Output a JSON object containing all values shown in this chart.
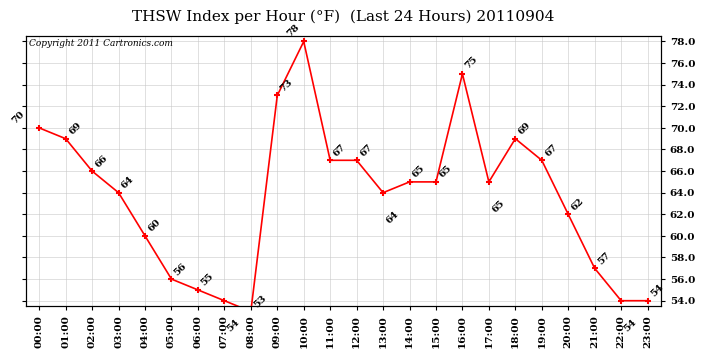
{
  "title": "THSW Index per Hour (°F)  (Last 24 Hours) 20110904",
  "copyright": "Copyright 2011 Cartronics.com",
  "hours": [
    "00:00",
    "01:00",
    "02:00",
    "03:00",
    "04:00",
    "05:00",
    "06:00",
    "07:00",
    "08:00",
    "09:00",
    "10:00",
    "11:00",
    "12:00",
    "13:00",
    "14:00",
    "15:00",
    "16:00",
    "17:00",
    "18:00",
    "19:00",
    "20:00",
    "21:00",
    "22:00",
    "23:00"
  ],
  "values": [
    70,
    69,
    66,
    64,
    60,
    56,
    55,
    54,
    53,
    73,
    78,
    67,
    67,
    64,
    65,
    65,
    75,
    65,
    69,
    67,
    62,
    57,
    54,
    54
  ],
  "ylim_min": 53.5,
  "ylim_max": 78.5,
  "ytick_min": 54,
  "ytick_max": 78,
  "ytick_step": 2,
  "line_color": "#FF0000",
  "marker_color": "#FF0000",
  "bg_color": "#FFFFFF",
  "grid_color": "#C8C8C8",
  "title_fontsize": 11,
  "tick_fontsize": 7.5,
  "annot_fontsize": 7,
  "copyright_fontsize": 6.5
}
